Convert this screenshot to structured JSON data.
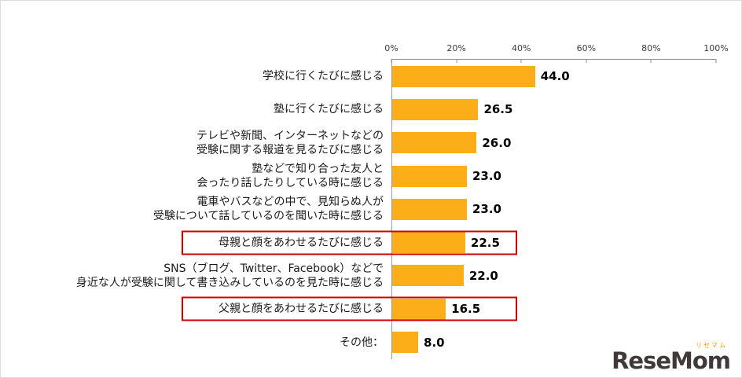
{
  "chart_data": {
    "type": "bar",
    "orientation": "horizontal",
    "title": "",
    "xlabel": "",
    "ylabel": "",
    "xlim": [
      0,
      100
    ],
    "x_ticks": [
      "0%",
      "20%",
      "40%",
      "60%",
      "80%",
      "100%"
    ],
    "grid": false,
    "legend": false,
    "bar_color": "#FBAE17",
    "highlight_box_color": "#CC0000",
    "categories": [
      "学校に行くたびに感じる",
      "塾に行くたびに感じる",
      "テレビや新聞、インターネットなどの受験に関する報道を見るたびに感じる",
      "塾などで知り合った友人と会ったり話したりしている時に感じる",
      "電車やバスなどの中で、見知らぬ人が受験について話しているのを聞いた時に感じる",
      "母親と顔をあわせるたびに感じる",
      "SNS（ブログ、Twitter、Facebook）などで身近な人が受験に関して書き込みしているのを見た時に感じる",
      "父親と顔をあわせるたびに感じる",
      "その他："
    ],
    "values": [
      44.0,
      26.5,
      26.0,
      23.0,
      23.0,
      22.5,
      22.0,
      16.5,
      8.0
    ],
    "rows": [
      {
        "label_lines": [
          "学校に行くたびに感じる"
        ],
        "value": 44.0,
        "display": "44.0",
        "highlighted": false
      },
      {
        "label_lines": [
          "塾に行くたびに感じる"
        ],
        "value": 26.5,
        "display": "26.5",
        "highlighted": false
      },
      {
        "label_lines": [
          "テレビや新聞、インターネットなどの",
          "受験に関する報道を見るたびに感じる"
        ],
        "value": 26.0,
        "display": "26.0",
        "highlighted": false
      },
      {
        "label_lines": [
          "塾などで知り合った友人と",
          "会ったり話したりしている時に感じる"
        ],
        "value": 23.0,
        "display": "23.0",
        "highlighted": false
      },
      {
        "label_lines": [
          "電車やバスなどの中で、見知らぬ人が",
          "受験について話しているのを聞いた時に感じる"
        ],
        "value": 23.0,
        "display": "23.0",
        "highlighted": false
      },
      {
        "label_lines": [
          "母親と顔をあわせるたびに感じる"
        ],
        "value": 22.5,
        "display": "22.5",
        "highlighted": true
      },
      {
        "label_lines": [
          "SNS（ブログ、Twitter、Facebook）などで",
          "身近な人が受験に関して書き込みしているのを見た時に感じる"
        ],
        "value": 22.0,
        "display": "22.0",
        "highlighted": false
      },
      {
        "label_lines": [
          "父親と顔をあわせるたびに感じる"
        ],
        "value": 16.5,
        "display": "16.5",
        "highlighted": true
      },
      {
        "label_lines": [
          "その他："
        ],
        "value": 8.0,
        "display": "8.0",
        "highlighted": false
      }
    ]
  },
  "logo": {
    "main": "ReseMom",
    "sub": "リセマム"
  }
}
